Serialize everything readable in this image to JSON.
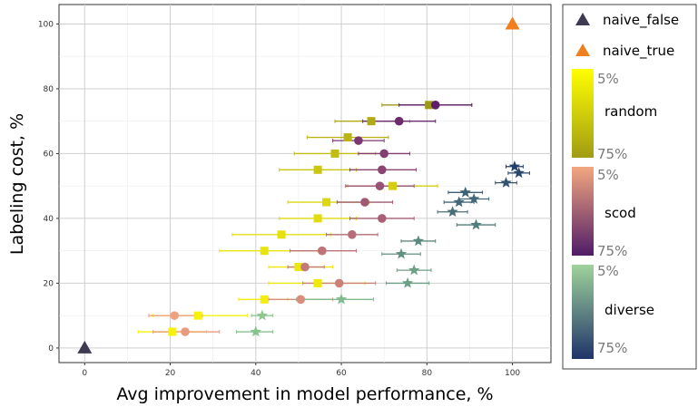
{
  "chart_data": {
    "type": "scatter",
    "xlabel": "Avg improvement in model performance, %",
    "ylabel": "Labeling cost, %",
    "xlim": [
      -6,
      109
    ],
    "ylim": [
      -4.5,
      106
    ],
    "x_ticks": [
      0,
      20,
      40,
      60,
      80,
      100
    ],
    "y_ticks": [
      0,
      20,
      40,
      60,
      80,
      100
    ],
    "grid": true,
    "legend_position": "right",
    "series": [
      {
        "name": "naive_false",
        "marker": "triangle",
        "color": "#3d3a52",
        "points": [
          {
            "x": 0,
            "y": 0
          }
        ]
      },
      {
        "name": "naive_true",
        "marker": "triangle",
        "color": "#f07f1d",
        "points": [
          {
            "x": 100,
            "y": 100
          }
        ]
      },
      {
        "name": "random",
        "marker": "square",
        "gradient_from": "#f7f10c",
        "gradient_to": "#9e9a17",
        "points": [
          {
            "x": 20.5,
            "y": 5,
            "xmin": 12.5,
            "xmax": 28.5,
            "f": 0.0
          },
          {
            "x": 26.5,
            "y": 10,
            "xmin": 16,
            "xmax": 38,
            "f": 0.0
          },
          {
            "x": 42,
            "y": 15,
            "xmin": 36,
            "xmax": 47.5,
            "f": 0.05
          },
          {
            "x": 54.5,
            "y": 20,
            "xmin": 43,
            "xmax": 65.5,
            "f": 0.1
          },
          {
            "x": 50,
            "y": 25,
            "xmin": 43,
            "xmax": 58,
            "f": 0.12
          },
          {
            "x": 42,
            "y": 30,
            "xmin": 31.5,
            "xmax": 54.5,
            "f": 0.15
          },
          {
            "x": 46,
            "y": 35,
            "xmin": 34.5,
            "xmax": 57.5,
            "f": 0.2
          },
          {
            "x": 54.5,
            "y": 40,
            "xmin": 45.5,
            "xmax": 63.5,
            "f": 0.25
          },
          {
            "x": 56.5,
            "y": 45,
            "xmin": 47.5,
            "xmax": 66.5,
            "f": 0.3
          },
          {
            "x": 72,
            "y": 50,
            "xmin": 61.5,
            "xmax": 82.5,
            "f": 0.4
          },
          {
            "x": 54.5,
            "y": 55,
            "xmin": 45.5,
            "xmax": 63.5,
            "f": 0.5
          },
          {
            "x": 58.5,
            "y": 60,
            "xmin": 49,
            "xmax": 68,
            "f": 0.6
          },
          {
            "x": 61.5,
            "y": 65,
            "xmin": 52,
            "xmax": 71,
            "f": 0.7
          },
          {
            "x": 67,
            "y": 70,
            "xmin": 58.5,
            "xmax": 76,
            "f": 0.8
          },
          {
            "x": 80.5,
            "y": 75,
            "xmin": 69.5,
            "xmax": 90.5,
            "f": 1.0
          }
        ]
      },
      {
        "name": "scod",
        "marker": "circle",
        "gradient_from": "#f0a17e",
        "gradient_to": "#5e1e6c",
        "points": [
          {
            "x": 23.5,
            "y": 5,
            "xmin": 16,
            "xmax": 31.5,
            "f": 0.05
          },
          {
            "x": 21,
            "y": 10,
            "xmin": 15,
            "xmax": 27.5,
            "f": 0.0
          },
          {
            "x": 50.5,
            "y": 15,
            "xmin": 43,
            "xmax": 58,
            "f": 0.15
          },
          {
            "x": 59.5,
            "y": 20,
            "xmin": 51,
            "xmax": 68,
            "f": 0.25
          },
          {
            "x": 51.5,
            "y": 25,
            "xmin": 47.5,
            "xmax": 56,
            "f": 0.3
          },
          {
            "x": 55.5,
            "y": 30,
            "xmin": 48,
            "xmax": 63.5,
            "f": 0.35
          },
          {
            "x": 62.5,
            "y": 35,
            "xmin": 56.5,
            "xmax": 68.5,
            "f": 0.4
          },
          {
            "x": 69.5,
            "y": 40,
            "xmin": 62,
            "xmax": 77,
            "f": 0.5
          },
          {
            "x": 65.5,
            "y": 45,
            "xmin": 59,
            "xmax": 72,
            "f": 0.55
          },
          {
            "x": 69,
            "y": 50,
            "xmin": 61,
            "xmax": 77,
            "f": 0.6
          },
          {
            "x": 69.5,
            "y": 55,
            "xmin": 62,
            "xmax": 77.5,
            "f": 0.7
          },
          {
            "x": 70,
            "y": 60,
            "xmin": 64,
            "xmax": 76,
            "f": 0.75
          },
          {
            "x": 64,
            "y": 64,
            "xmin": 58,
            "xmax": 70,
            "f": 0.8
          },
          {
            "x": 73.5,
            "y": 70,
            "xmin": 65,
            "xmax": 82,
            "f": 0.9
          },
          {
            "x": 82,
            "y": 75,
            "xmin": 73.5,
            "xmax": 90.5,
            "f": 1.0
          }
        ]
      },
      {
        "name": "diverse",
        "marker": "star",
        "gradient_from": "#8cc98f",
        "gradient_to": "#233e6c",
        "points": [
          {
            "x": 40,
            "y": 5,
            "xmin": 35.5,
            "xmax": 44,
            "f": 0.05
          },
          {
            "x": 41.5,
            "y": 10,
            "xmin": 39,
            "xmax": 44,
            "f": 0.0
          },
          {
            "x": 60,
            "y": 15,
            "xmin": 49.5,
            "xmax": 67.5,
            "f": 0.1
          },
          {
            "x": 75.5,
            "y": 20,
            "xmin": 70.5,
            "xmax": 80.5,
            "f": 0.3
          },
          {
            "x": 77,
            "y": 24,
            "xmin": 73,
            "xmax": 81,
            "f": 0.3
          },
          {
            "x": 74,
            "y": 29,
            "xmin": 69.5,
            "xmax": 78.5,
            "f": 0.4
          },
          {
            "x": 78,
            "y": 33,
            "xmin": 74,
            "xmax": 82,
            "f": 0.45
          },
          {
            "x": 91.5,
            "y": 38,
            "xmin": 87,
            "xmax": 96,
            "f": 0.55
          },
          {
            "x": 86,
            "y": 42,
            "xmin": 82.5,
            "xmax": 89.5,
            "f": 0.65
          },
          {
            "x": 87.5,
            "y": 45,
            "xmin": 84,
            "xmax": 91,
            "f": 0.7
          },
          {
            "x": 91,
            "y": 46,
            "xmin": 87.5,
            "xmax": 94.5,
            "f": 0.7
          },
          {
            "x": 89,
            "y": 48,
            "xmin": 85,
            "xmax": 93,
            "f": 0.75
          },
          {
            "x": 98.5,
            "y": 51,
            "xmin": 96,
            "xmax": 101,
            "f": 0.85
          },
          {
            "x": 101.5,
            "y": 54,
            "xmin": 99,
            "xmax": 104,
            "f": 0.95
          },
          {
            "x": 100.5,
            "y": 56,
            "xmin": 98.5,
            "xmax": 102.5,
            "f": 1.0
          }
        ]
      }
    ],
    "legend": {
      "items": [
        {
          "label": "naive_false",
          "color": "#3d3a52"
        },
        {
          "label": "naive_true",
          "color": "#f07f1d"
        }
      ],
      "gradients": [
        {
          "title": "random",
          "low": "5%",
          "high": "75%",
          "from": "#ffff00",
          "to": "#a09c14"
        },
        {
          "title": "scod",
          "low": "5%",
          "high": "75%",
          "from": "#f3a77f",
          "to": "#4f1c67"
        },
        {
          "title": "diverse",
          "low": "5%",
          "high": "75%",
          "from": "#9fd39b",
          "to": "#1f3469"
        }
      ]
    }
  }
}
